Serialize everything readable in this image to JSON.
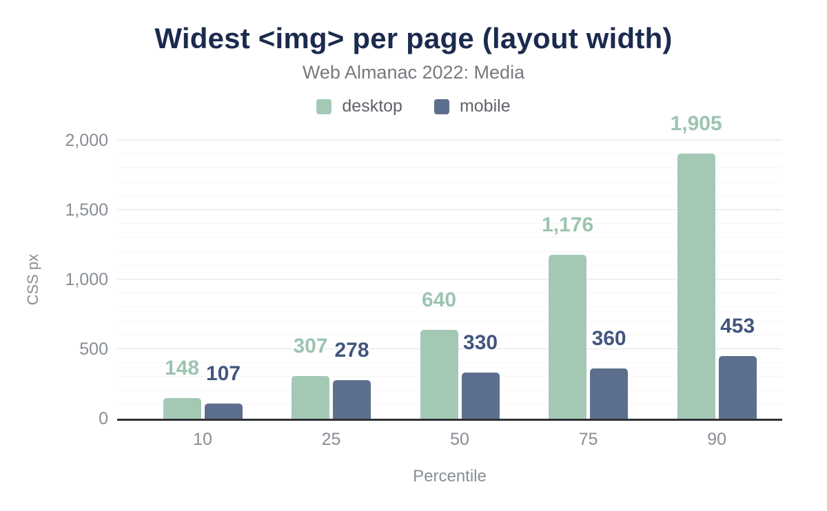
{
  "figure": {
    "title": "Widest <img> per page (layout width)",
    "subtitle": "Web Almanac 2022: Media"
  },
  "chart_data": {
    "type": "bar",
    "title": "Widest <img> per page (layout width)",
    "subtitle": "Web Almanac 2022: Media",
    "xlabel": "Percentile",
    "ylabel": "CSS px",
    "categories": [
      "10",
      "25",
      "50",
      "75",
      "90"
    ],
    "series": [
      {
        "name": "desktop",
        "values": [
          148,
          307,
          640,
          1176,
          1905
        ],
        "value_labels": [
          "148",
          "307",
          "640",
          "1,176",
          "1,905"
        ],
        "color": "#a3c9b5",
        "label_color": "#9cc4b0"
      },
      {
        "name": "mobile",
        "values": [
          107,
          278,
          330,
          360,
          453
        ],
        "value_labels": [
          "107",
          "278",
          "330",
          "360",
          "453"
        ],
        "color": "#5d6f8e",
        "label_color": "#41567d"
      }
    ],
    "ylim": [
      0,
      2000
    ],
    "y_ticks": [
      {
        "value": 0,
        "label": "0"
      },
      {
        "value": 500,
        "label": "500"
      },
      {
        "value": 1000,
        "label": "1,000"
      },
      {
        "value": 1500,
        "label": "1,500"
      },
      {
        "value": 2000,
        "label": "2,000"
      }
    ],
    "y_minor_step": 100,
    "y_major_step": 500,
    "grid": "horizontal",
    "legend_position": "top-center",
    "value_labels_position": "above-bars",
    "axis_line_color": "#2f3136",
    "tick_text_color": "#878d93"
  }
}
